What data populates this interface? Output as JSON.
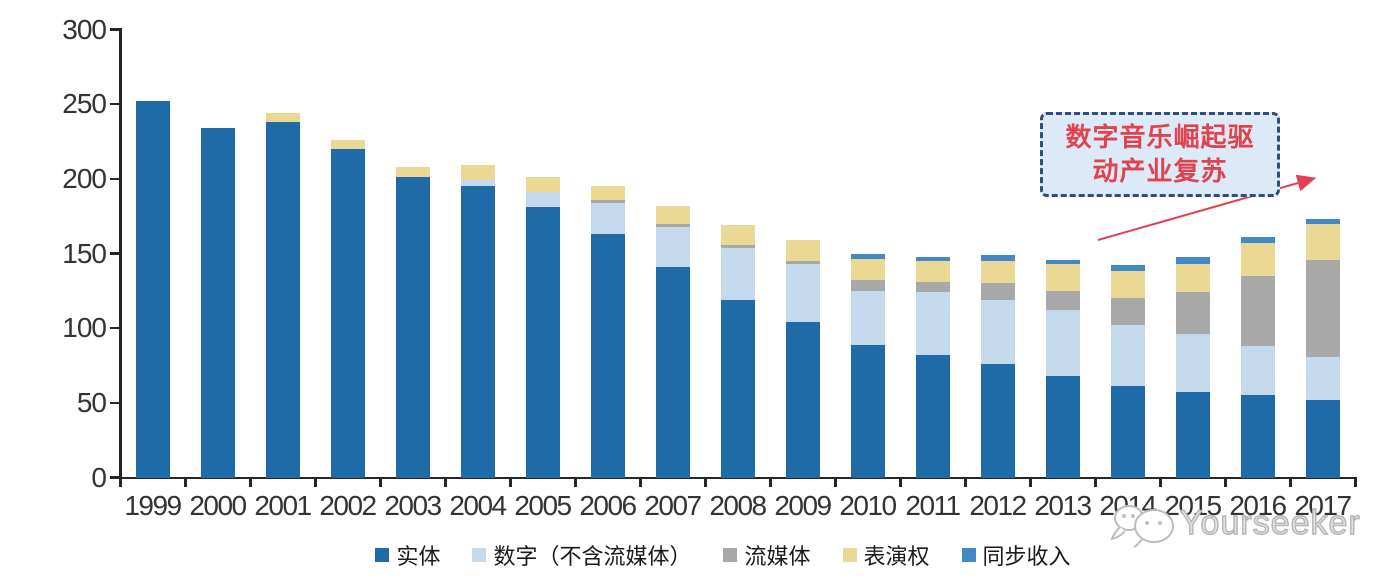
{
  "chart_data": {
    "type": "bar",
    "stacked": true,
    "title": "",
    "categories": [
      "1999",
      "2000",
      "2001",
      "2002",
      "2003",
      "2004",
      "2005",
      "2006",
      "2007",
      "2008",
      "2009",
      "2010",
      "2011",
      "2012",
      "2013",
      "2014",
      "2015",
      "2016",
      "2017"
    ],
    "series": [
      {
        "name": "实体",
        "color": "#1E6BA8",
        "values": [
          252,
          234,
          238,
          220,
          201,
          195,
          181,
          163,
          141,
          119,
          104,
          89,
          82,
          76,
          68,
          61,
          57,
          55,
          52
        ]
      },
      {
        "name": "数字（不含流媒体）",
        "color": "#C5D9ED",
        "values": [
          0,
          0,
          0,
          0,
          0,
          4,
          10,
          21,
          27,
          35,
          39,
          36,
          42,
          43,
          44,
          41,
          39,
          33,
          29
        ]
      },
      {
        "name": "流媒体",
        "color": "#A8A8A8",
        "values": [
          0,
          0,
          0,
          0,
          0,
          0,
          0,
          2,
          2,
          2,
          2,
          7,
          7,
          11,
          13,
          18,
          28,
          47,
          65
        ]
      },
      {
        "name": "表演权",
        "color": "#EBD894",
        "values": [
          0,
          0,
          6,
          6,
          7,
          10,
          10,
          9,
          12,
          13,
          14,
          14,
          14,
          15,
          18,
          18,
          19,
          22,
          24
        ]
      },
      {
        "name": "同步收入",
        "color": "#4288C6",
        "values": [
          0,
          0,
          0,
          0,
          0,
          0,
          0,
          0,
          0,
          0,
          0,
          4,
          3,
          4,
          3,
          4,
          5,
          4,
          3
        ]
      }
    ],
    "ylim": [
      0,
      300
    ],
    "yticks": [
      0,
      50,
      100,
      150,
      200,
      250,
      300
    ],
    "grid": false,
    "legend_position": "bottom"
  },
  "annotation": {
    "line1": "数字音乐崛起驱",
    "line2": "动产业复苏",
    "text_color": "#E04250",
    "box_fill": "#DCE9F6",
    "box_border_color": "#2F4E7E",
    "arrow_color": "#E04250"
  },
  "watermark": {
    "text": "Yourseeker",
    "color": "#B5B5B5"
  }
}
